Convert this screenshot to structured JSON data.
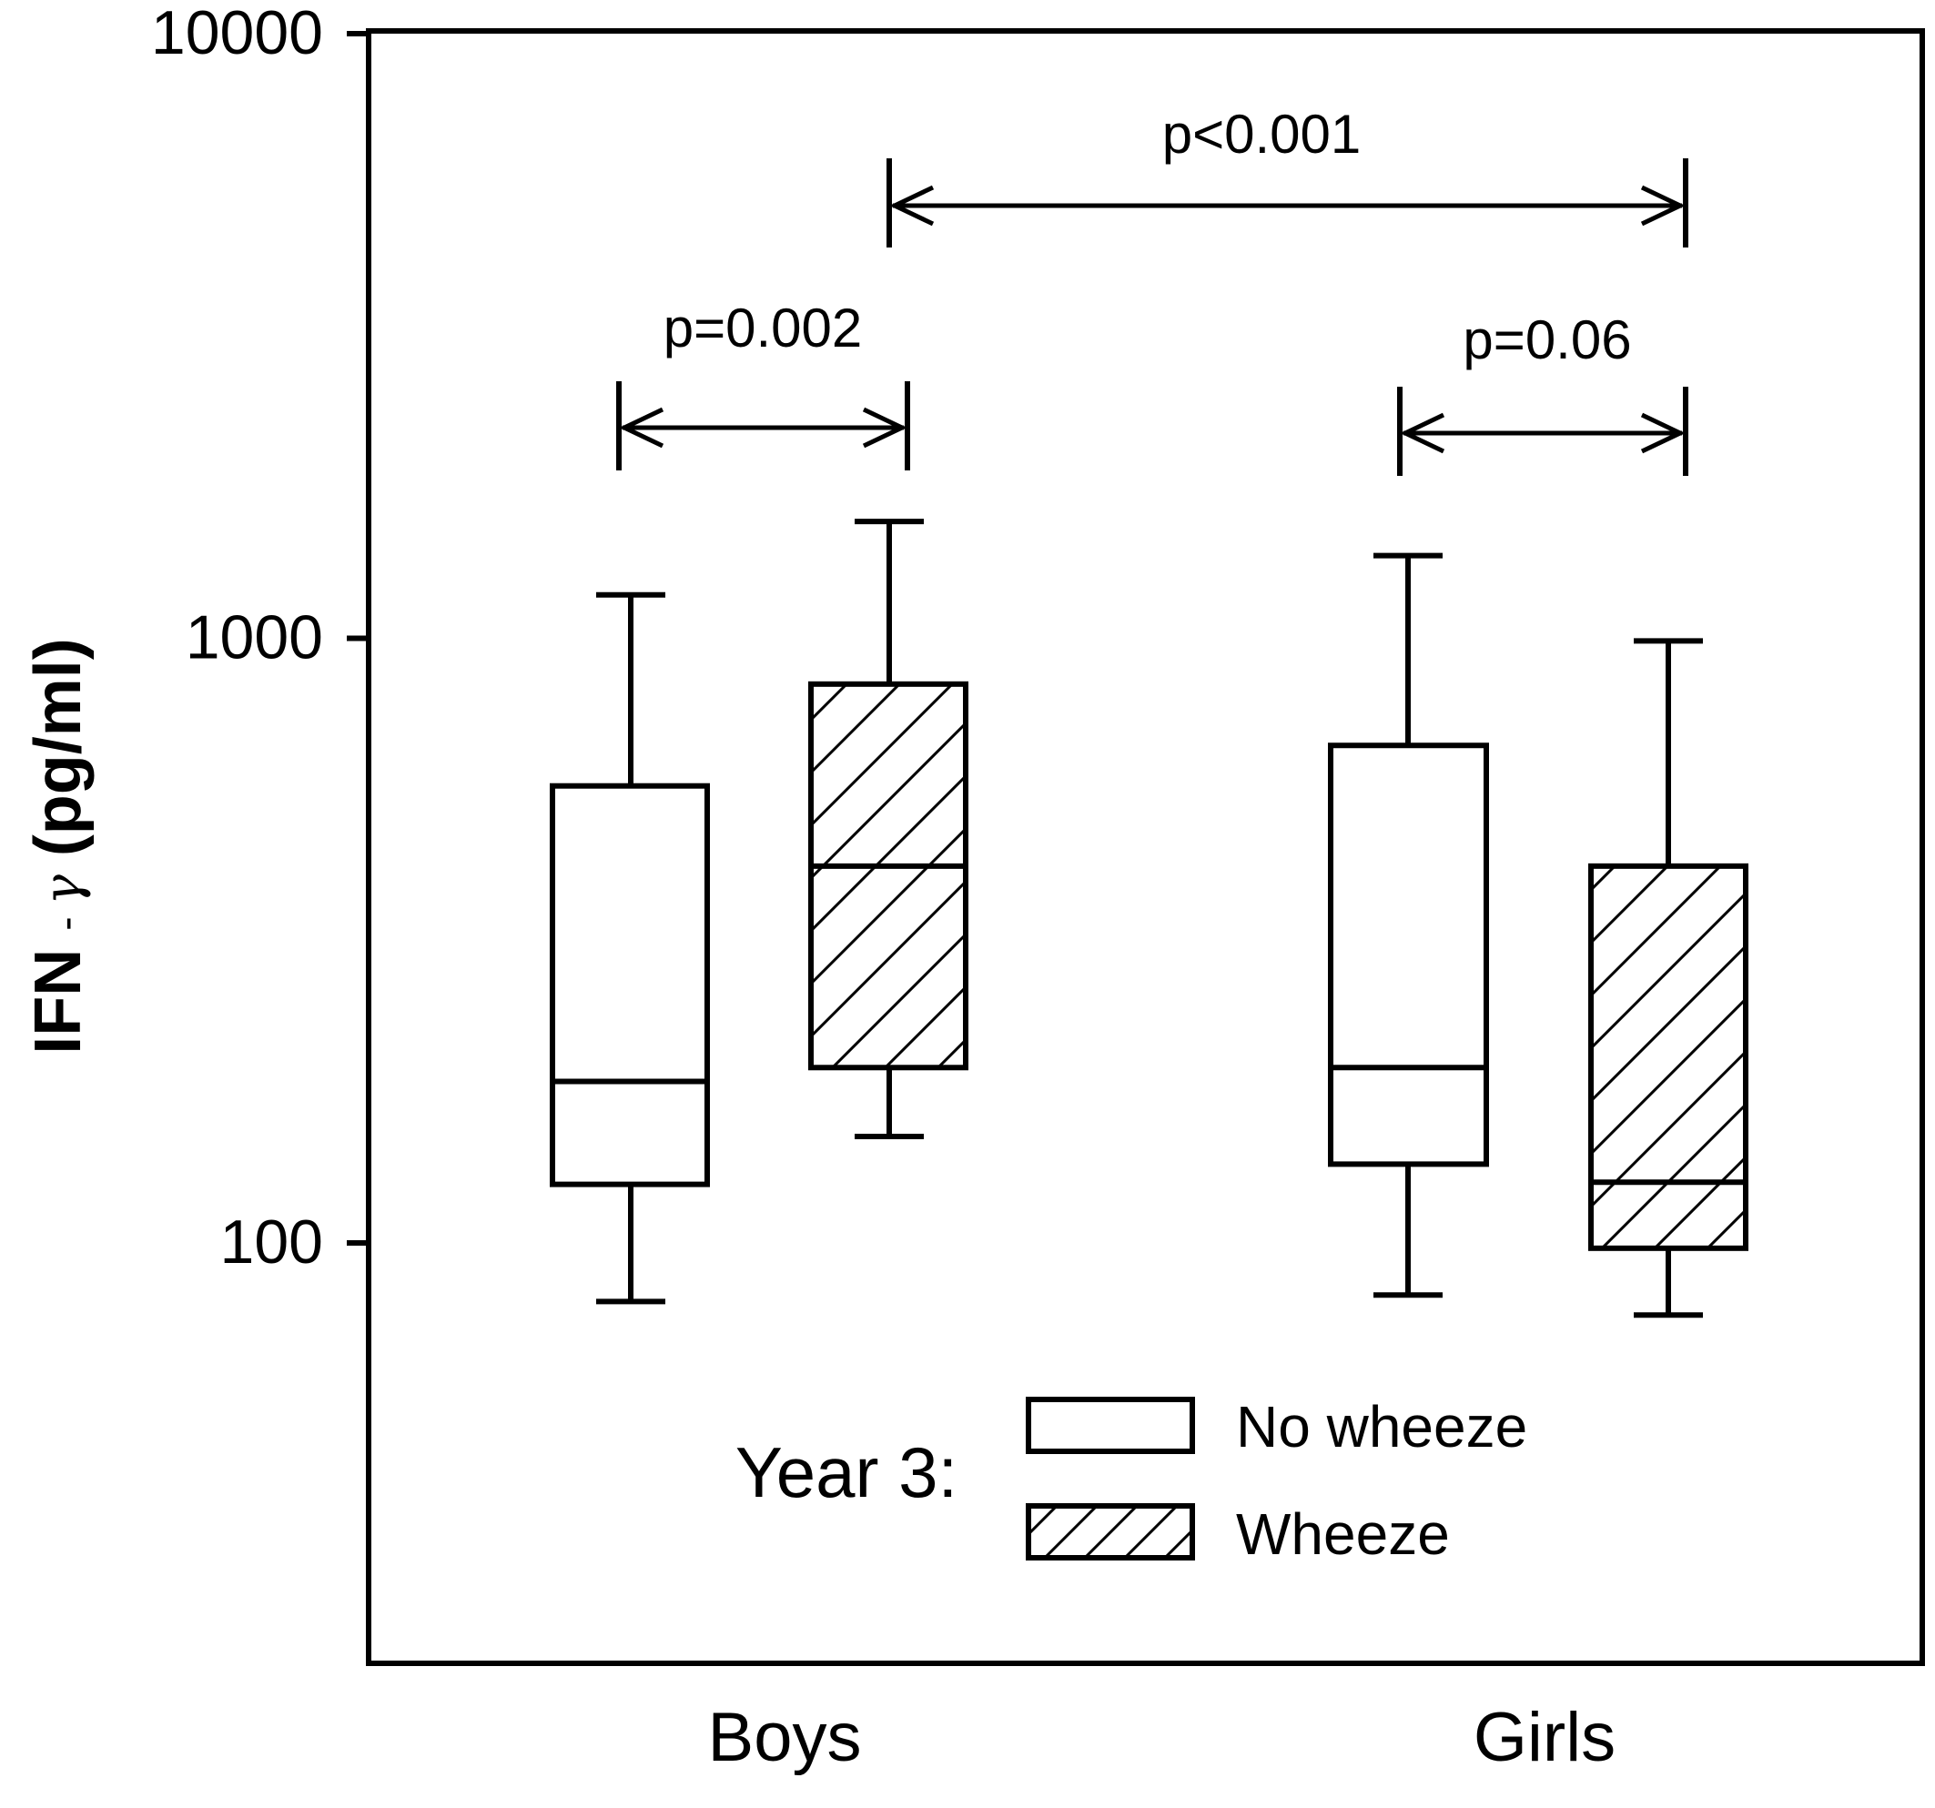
{
  "chart_data": {
    "type": "box",
    "ylabel_main": "IFN",
    "ylabel_sep": " - ",
    "ylabel_greek": "γ",
    "ylabel_unit": " (pg/ml)",
    "yscale": "log",
    "ylim": [
      30,
      10000
    ],
    "yticks": [
      {
        "value": 100,
        "label": "100"
      },
      {
        "value": 1000,
        "label": "1000"
      },
      {
        "value": 10000,
        "label": "10000"
      }
    ],
    "categories": [
      "Boys",
      "Girls"
    ],
    "legend": {
      "title": "Year 3:",
      "items": [
        {
          "label": "No wheeze",
          "pattern": "none"
        },
        {
          "label": "Wheeze",
          "pattern": "hatch"
        }
      ]
    },
    "boxes": [
      {
        "group": "Boys",
        "series": "No wheeze",
        "whisker_low": 80,
        "q1": 125,
        "median": 185,
        "q3": 570,
        "whisker_high": 1180
      },
      {
        "group": "Boys",
        "series": "Wheeze",
        "whisker_low": 150,
        "q1": 195,
        "median": 420,
        "q3": 840,
        "whisker_high": 1560
      },
      {
        "group": "Girls",
        "series": "No wheeze",
        "whisker_low": 82,
        "q1": 135,
        "median": 195,
        "q3": 665,
        "whisker_high": 1370
      },
      {
        "group": "Girls",
        "series": "Wheeze",
        "whisker_low": 76,
        "q1": 98,
        "median": 126,
        "q3": 420,
        "whisker_high": 990
      }
    ],
    "comparisons": [
      {
        "label": "p<0.001",
        "from": "Boys Wheeze",
        "to": "Girls Wheeze"
      },
      {
        "label": "p=0.002",
        "from": "Boys No wheeze",
        "to": "Boys Wheeze"
      },
      {
        "label": "p=0.06",
        "from": "Girls No wheeze",
        "to": "Girls Wheeze"
      }
    ]
  }
}
